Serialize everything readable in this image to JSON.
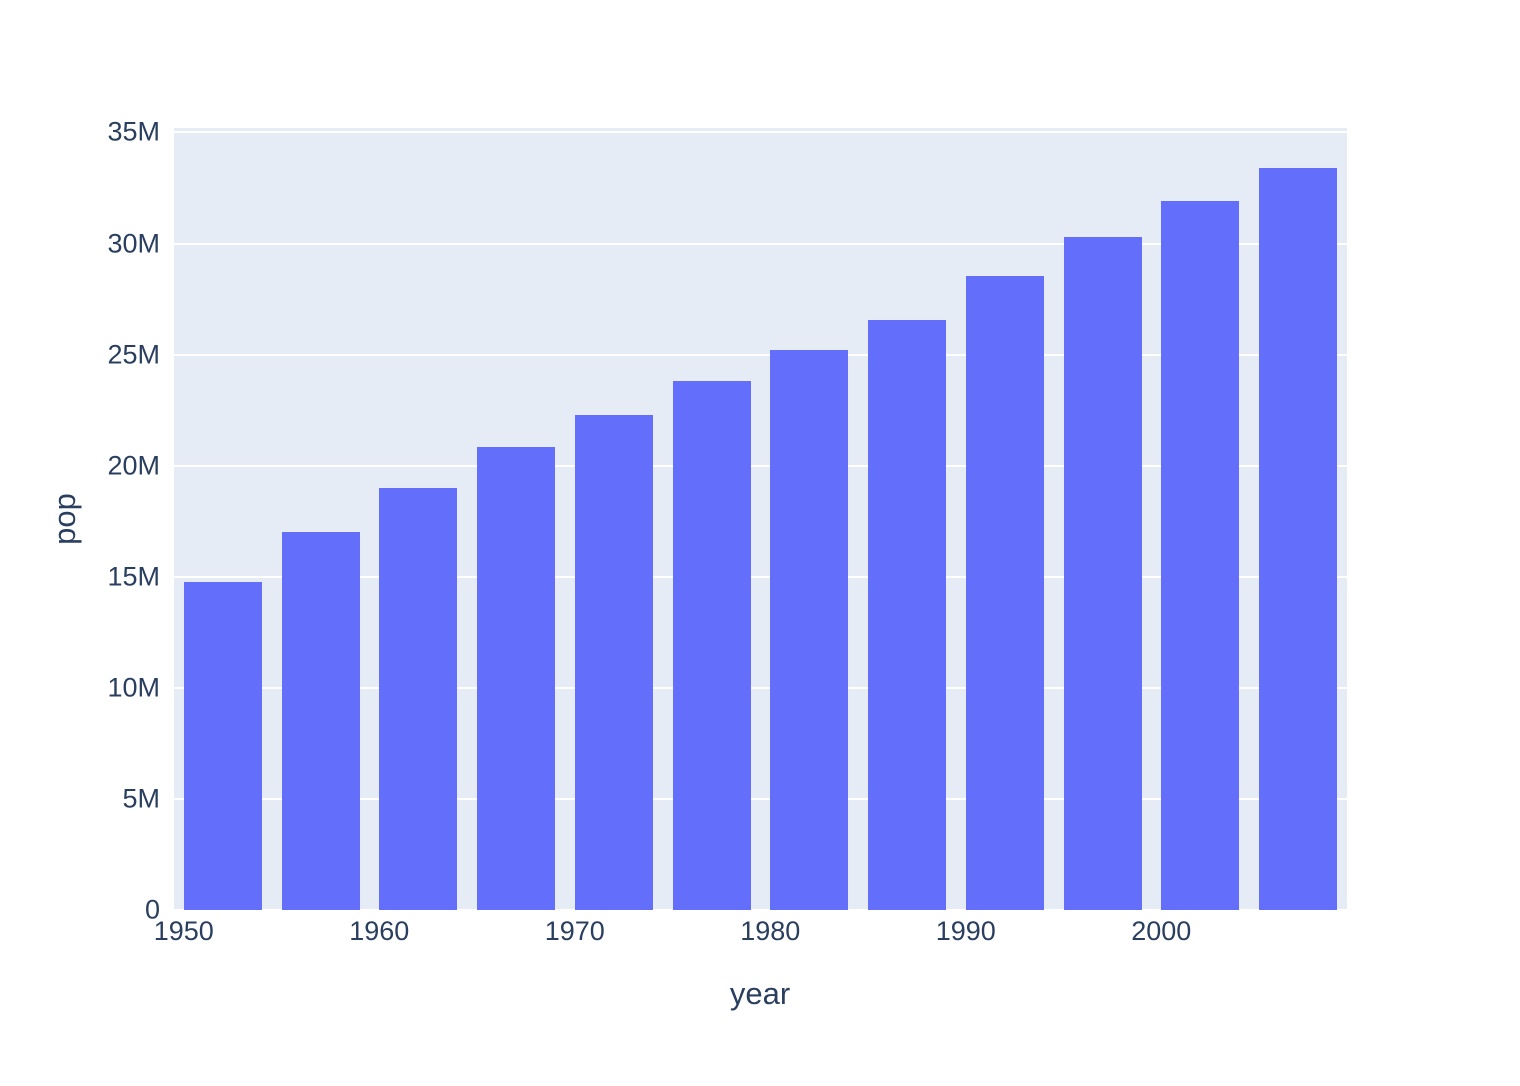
{
  "figure": {
    "title": ""
  },
  "chart_data": {
    "type": "bar",
    "title": "",
    "xlabel": "year",
    "ylabel": "pop",
    "x": [
      1952,
      1957,
      1962,
      1967,
      1972,
      1977,
      1982,
      1987,
      1992,
      1997,
      2002,
      2007
    ],
    "values": [
      14785584,
      17010154,
      18985849,
      20819767,
      22284500,
      23796400,
      25201900,
      26549700,
      28523502,
      30305843,
      31902268,
      33390141
    ],
    "xlim": [
      1949.5,
      2009.5
    ],
    "ylim": [
      0,
      35200000
    ],
    "bar_width_years": 4,
    "x_ticks": {
      "values": [
        1950,
        1960,
        1970,
        1980,
        1990,
        2000
      ],
      "labels": [
        "1950",
        "1960",
        "1970",
        "1980",
        "1990",
        "2000"
      ]
    },
    "y_ticks": {
      "values": [
        0,
        5000000,
        10000000,
        15000000,
        20000000,
        25000000,
        30000000,
        35000000
      ],
      "labels": [
        "0",
        "5M",
        "10M",
        "15M",
        "20M",
        "25M",
        "30M",
        "35M"
      ]
    },
    "grid": true,
    "legend": "none",
    "colors": {
      "bar": "#636EFA",
      "plot_background": "#E5ECF6",
      "gridline": "#FFFFFF",
      "text": "#2A3F5F",
      "page_background": "#FFFFFF"
    }
  }
}
